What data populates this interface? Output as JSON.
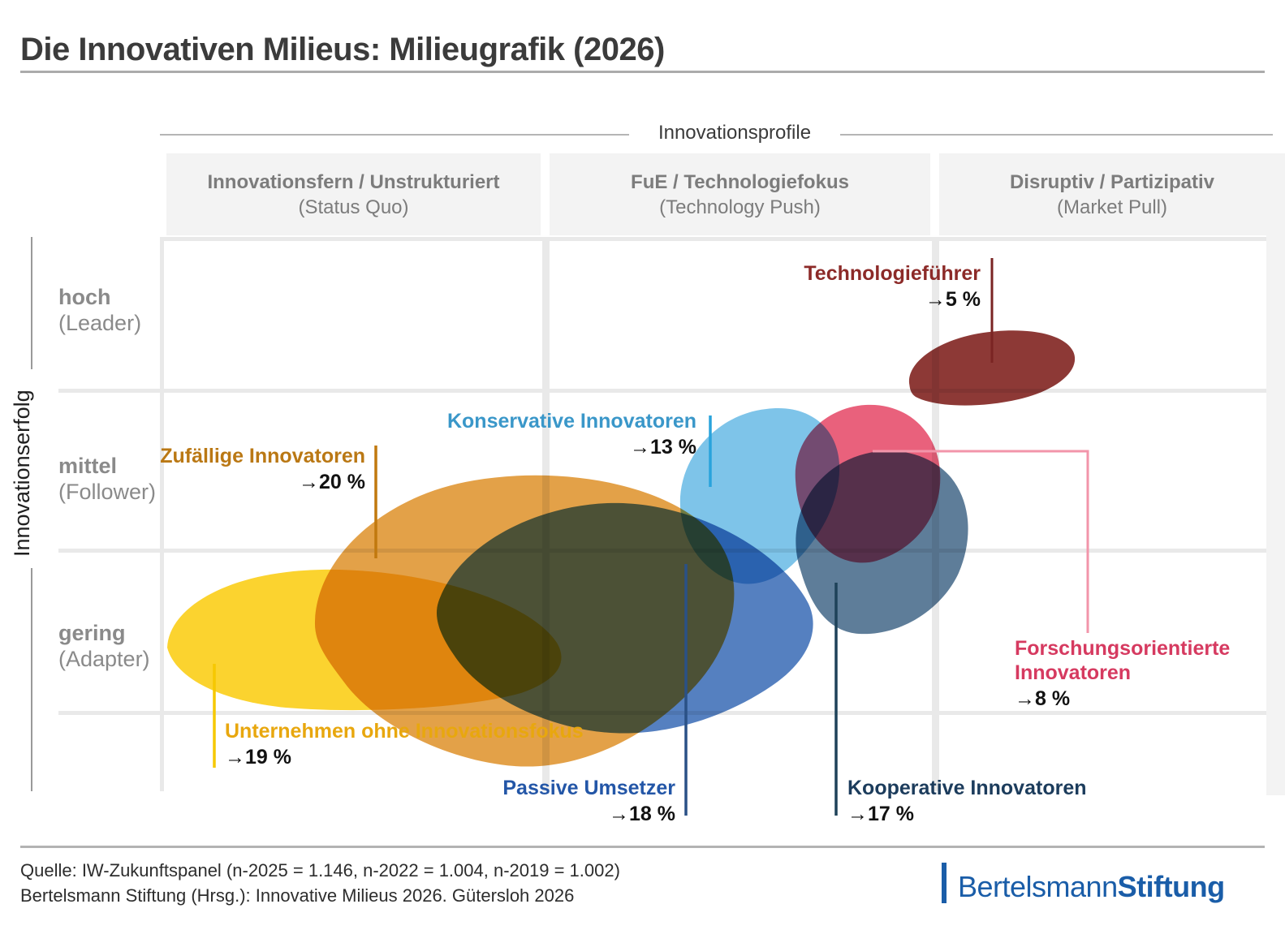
{
  "header": {
    "title": "Die Innovativen Milieus: Milieugrafik (2026)"
  },
  "axes": {
    "top": {
      "title": "Innovationsprofile",
      "columns": [
        {
          "label": "Innovationsfern / Unstrukturiert",
          "sublabel": "(Status Quo)"
        },
        {
          "label": "FuE / Technologiefokus",
          "sublabel": "(Technology Push)"
        },
        {
          "label": "Disruptiv / Partizipativ",
          "sublabel": "(Market Pull)"
        }
      ]
    },
    "left": {
      "title": "Innovationserfolg",
      "rows": [
        {
          "label": "hoch",
          "sublabel": "(Leader)"
        },
        {
          "label": "mittel",
          "sublabel": "(Follower)"
        },
        {
          "label": "gering",
          "sublabel": "(Adapter)"
        }
      ]
    }
  },
  "chart_data": {
    "type": "scatter",
    "subtype": "milieu-blob-map",
    "title": "Die Innovativen Milieus: Milieugrafik (2026)",
    "xlabel": "Innovationsprofile",
    "ylabel": "Innovationserfolg",
    "x_categories": [
      "Innovationsfern / Unstrukturiert (Status Quo)",
      "FuE / Technologiefokus (Technology Push)",
      "Disruptiv / Partizipativ (Market Pull)"
    ],
    "y_categories": [
      "gering (Adapter)",
      "mittel (Follower)",
      "hoch (Leader)"
    ],
    "grid": true,
    "legend": false,
    "series": [
      {
        "id": "ohne_fokus",
        "name": "Unternehmen ohne Innovationsfokus",
        "share_pct": 19,
        "pct_label": "→19 %",
        "x_profile": "Innovationsfern / Unstrukturiert",
        "y_erfolg": "gering",
        "blob_color": "#fbd32f",
        "label_color": "#e8a70e",
        "line_color": "#f6c800"
      },
      {
        "id": "zufaellige",
        "name": "Zufällige Innovatoren",
        "share_pct": 20,
        "pct_label": "→20 %",
        "x_profile": "Innovationsfern / Unstrukturiert",
        "y_erfolg": "mittel–gering",
        "blob_color": "#e3a148",
        "label_color": "#ba7814",
        "line_color": "#c1790e"
      },
      {
        "id": "passive",
        "name": "Passive Umsetzer",
        "share_pct": 18,
        "pct_label": "→18 %",
        "x_profile": "Innovationsfern – FuE / Technologiefokus",
        "y_erfolg": "gering–mittel",
        "blob_color": "#5580c0",
        "label_color": "#2356a7",
        "line_color": "#2a5186"
      },
      {
        "id": "konservative",
        "name": "Konservative Innovatoren",
        "share_pct": 13,
        "pct_label": "→13 %",
        "x_profile": "FuE / Technologiefokus",
        "y_erfolg": "mittel",
        "blob_color": "#7ec4e9",
        "label_color": "#3a97c9",
        "line_color": "#29a3dc"
      },
      {
        "id": "kooperative",
        "name": "Kooperative Innovatoren",
        "share_pct": 17,
        "pct_label": "→17 %",
        "x_profile": "FuE / Technologiefokus – Disruptiv",
        "y_erfolg": "mittel–gering",
        "blob_color": "#5e7d99",
        "label_color": "#1c3c5c",
        "line_color": "#1e4259"
      },
      {
        "id": "forschungsorientierte",
        "name": "Forschungsorientierte Innovatoren",
        "name_lines": [
          "Forschungsorientierte",
          "Innovatoren"
        ],
        "share_pct": 8,
        "pct_label": "→8 %",
        "x_profile": "FuE / Technologiefokus – Disruptiv",
        "y_erfolg": "mittel",
        "blob_color": "#e9617c",
        "label_color": "#d63a60",
        "line_color": "#f295aa"
      },
      {
        "id": "technologiefuehrer",
        "name": "Technologieführer",
        "share_pct": 5,
        "pct_label": "→5 %",
        "x_profile": "Disruptiv / Partizipativ",
        "y_erfolg": "hoch",
        "blob_color": "#8d3936",
        "label_color": "#8c2a28",
        "line_color": "#7a2423"
      }
    ]
  },
  "footer": {
    "source_line1": "Quelle: IW-Zukunftspanel (n-2025 = 1.146, n-2022 = 1.004, n-2019 = 1.002)",
    "source_line2": "Bertelsmann Stiftung (Hrsg.): Innovative Milieus 2026. Gütersloh 2026",
    "logo": {
      "prefix": "Bertelsmann",
      "suffix": "Stiftung"
    }
  },
  "colors": {
    "brand_blue": "#1a5da8",
    "gridline": "#e9e9e9",
    "header_block": "#f3f3f3",
    "title_text": "#3b3b3b",
    "axis_text": "#7c7c7c"
  }
}
